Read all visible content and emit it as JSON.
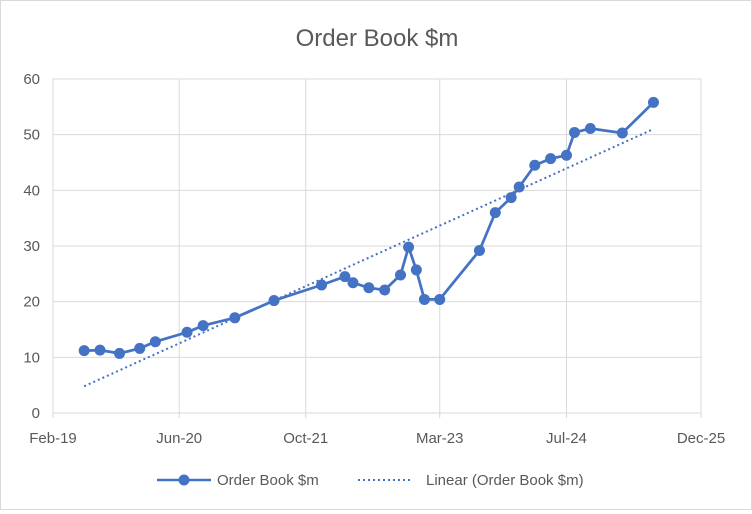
{
  "chart_data": {
    "type": "line",
    "title": "Order Book $m",
    "xlabel": "",
    "ylabel": "",
    "ylim": [
      0,
      60
    ],
    "yticks": [
      0,
      10,
      20,
      30,
      40,
      50,
      60
    ],
    "xlim": [
      "2019-02-01",
      "2025-12-01"
    ],
    "xticks": [
      {
        "date": "2019-02-01",
        "label": "Feb-19"
      },
      {
        "date": "2020-06-01",
        "label": "Jun-20"
      },
      {
        "date": "2021-10-01",
        "label": "Oct-21"
      },
      {
        "date": "2023-03-01",
        "label": "Mar-23"
      },
      {
        "date": "2024-07-01",
        "label": "Jul-24"
      },
      {
        "date": "2025-12-01",
        "label": "Dec-25"
      }
    ],
    "grid": true,
    "legend_position": "bottom",
    "series": [
      {
        "name": "Order Book $m",
        "color": "#4472C4",
        "marker": "circle",
        "points": [
          {
            "x": "2019-06-01",
            "y": 11.2
          },
          {
            "x": "2019-08-01",
            "y": 11.3
          },
          {
            "x": "2019-10-15",
            "y": 10.7
          },
          {
            "x": "2020-01-01",
            "y": 11.6
          },
          {
            "x": "2020-03-01",
            "y": 12.8
          },
          {
            "x": "2020-07-01",
            "y": 14.5
          },
          {
            "x": "2020-09-01",
            "y": 15.7
          },
          {
            "x": "2021-01-01",
            "y": 17.1
          },
          {
            "x": "2021-06-01",
            "y": 20.2
          },
          {
            "x": "2021-12-01",
            "y": 23.0
          },
          {
            "x": "2022-03-01",
            "y": 24.5
          },
          {
            "x": "2022-04-01",
            "y": 23.4
          },
          {
            "x": "2022-06-01",
            "y": 22.5
          },
          {
            "x": "2022-08-01",
            "y": 22.1
          },
          {
            "x": "2022-10-01",
            "y": 24.8
          },
          {
            "x": "2022-11-01",
            "y": 29.8
          },
          {
            "x": "2022-12-01",
            "y": 25.7
          },
          {
            "x": "2023-01-01",
            "y": 20.4
          },
          {
            "x": "2023-03-01",
            "y": 20.4
          },
          {
            "x": "2023-08-01",
            "y": 29.2
          },
          {
            "x": "2023-10-01",
            "y": 36.0
          },
          {
            "x": "2023-12-01",
            "y": 38.7
          },
          {
            "x": "2024-01-01",
            "y": 40.6
          },
          {
            "x": "2024-03-01",
            "y": 44.5
          },
          {
            "x": "2024-05-01",
            "y": 45.7
          },
          {
            "x": "2024-07-01",
            "y": 46.3
          },
          {
            "x": "2024-08-01",
            "y": 50.4
          },
          {
            "x": "2024-10-01",
            "y": 51.1
          },
          {
            "x": "2025-02-01",
            "y": 50.3
          },
          {
            "x": "2025-06-01",
            "y": 55.8
          }
        ]
      }
    ],
    "trendline": {
      "name": "Linear (Order Book $m)",
      "color": "#4472C4",
      "style": "dotted",
      "points": [
        {
          "x": "2019-06-01",
          "y": 4.8
        },
        {
          "x": "2025-06-01",
          "y": 51.0
        }
      ]
    }
  }
}
